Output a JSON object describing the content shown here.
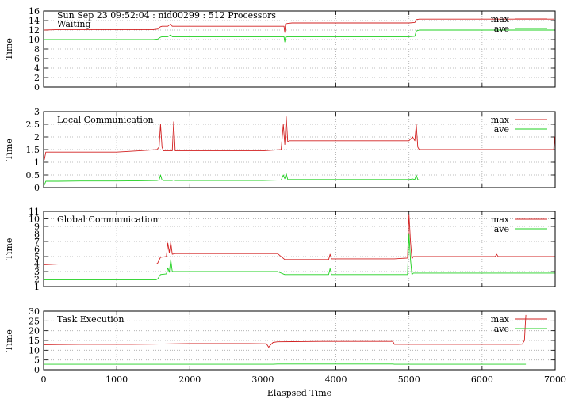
{
  "chart_data": [
    {
      "type": "line",
      "header": "Sun Sep 23 09:52:04 : nid00299 : 512 Processors",
      "title": "Waiting",
      "xlabel": "",
      "ylabel": "Time",
      "xlim": [
        0,
        7000
      ],
      "ylim": [
        0,
        16
      ],
      "xticks": [
        0,
        1000,
        2000,
        3000,
        4000,
        5000,
        6000,
        7000
      ],
      "yticks": [
        0,
        2,
        4,
        6,
        8,
        10,
        12,
        14,
        16
      ],
      "show_xtick_labels": false,
      "grid": true,
      "legend": "top-right",
      "series": [
        {
          "name": "max",
          "color": "#d22020",
          "x": [
            0,
            200,
            400,
            600,
            800,
            1000,
            1200,
            1400,
            1500,
            1560,
            1580,
            1600,
            1620,
            1700,
            1740,
            1760,
            1780,
            1900,
            2100,
            2400,
            2700,
            3000,
            3200,
            3290,
            3300,
            3310,
            3340,
            3400,
            3600,
            3800,
            4000,
            4200,
            4400,
            4600,
            4800,
            5000,
            5080,
            5100,
            5140,
            5200,
            5400,
            5600,
            5800,
            6000,
            6200,
            6400,
            6600,
            6800,
            6990
          ],
          "y": [
            12.0,
            12.1,
            12.1,
            12.1,
            12.1,
            12.1,
            12.1,
            12.1,
            12.1,
            12.2,
            12.5,
            12.7,
            12.8,
            12.8,
            13.3,
            12.8,
            12.8,
            12.8,
            12.8,
            12.8,
            12.8,
            12.8,
            12.8,
            12.8,
            11.5,
            13.3,
            13.4,
            13.5,
            13.5,
            13.5,
            13.5,
            13.5,
            13.5,
            13.5,
            13.5,
            13.5,
            13.6,
            14.2,
            14.3,
            14.3,
            14.3,
            14.3,
            14.3,
            14.3,
            14.3,
            14.3,
            14.3,
            14.3,
            14.3
          ]
        },
        {
          "name": "ave",
          "color": "#20d020",
          "x": [
            0,
            200,
            400,
            600,
            800,
            1000,
            1200,
            1400,
            1500,
            1560,
            1580,
            1600,
            1620,
            1700,
            1740,
            1760,
            1780,
            1900,
            2100,
            2400,
            2700,
            3000,
            3200,
            3290,
            3300,
            3310,
            3340,
            3400,
            3600,
            3800,
            4000,
            4200,
            4400,
            4600,
            4800,
            5000,
            5080,
            5100,
            5140,
            5200,
            5400,
            5600,
            5800,
            6000,
            6200,
            6400,
            6600,
            6800,
            6990
          ],
          "y": [
            10.0,
            10.0,
            10.0,
            10.0,
            10.0,
            10.0,
            10.0,
            10.0,
            10.0,
            10.1,
            10.3,
            10.5,
            10.6,
            10.6,
            11.0,
            10.6,
            10.6,
            10.6,
            10.6,
            10.6,
            10.6,
            10.6,
            10.6,
            10.6,
            9.5,
            10.5,
            10.6,
            10.6,
            10.6,
            10.6,
            10.6,
            10.6,
            10.6,
            10.6,
            10.6,
            10.6,
            10.7,
            11.8,
            12.0,
            12.0,
            12.0,
            12.0,
            12.0,
            12.0,
            12.0,
            12.0,
            12.0,
            12.0,
            12.0
          ]
        }
      ]
    },
    {
      "type": "line",
      "title": "Local Communication",
      "xlabel": "",
      "ylabel": "Time",
      "xlim": [
        0,
        7000
      ],
      "ylim": [
        0,
        3
      ],
      "xticks": [
        0,
        1000,
        2000,
        3000,
        4000,
        5000,
        6000,
        7000
      ],
      "yticks": [
        0,
        0.5,
        1,
        1.5,
        2,
        2.5,
        3
      ],
      "show_xtick_labels": false,
      "grid": true,
      "legend": "top-right",
      "series": [
        {
          "name": "max",
          "color": "#d22020",
          "x": [
            0,
            10,
            30,
            60,
            200,
            500,
            800,
            1000,
            1300,
            1550,
            1580,
            1600,
            1620,
            1640,
            1700,
            1760,
            1780,
            1800,
            1820,
            1900,
            2200,
            2600,
            3000,
            3250,
            3280,
            3300,
            3320,
            3340,
            3360,
            3380,
            3400,
            3600,
            4000,
            4400,
            4800,
            5000,
            5050,
            5080,
            5100,
            5120,
            5140,
            5200,
            5400,
            5800,
            6200,
            6600,
            6980,
            6990,
            7000
          ],
          "y": [
            1.4,
            1.1,
            1.4,
            1.4,
            1.4,
            1.4,
            1.4,
            1.4,
            1.45,
            1.5,
            1.6,
            2.5,
            1.6,
            1.45,
            1.45,
            1.45,
            2.6,
            1.45,
            1.45,
            1.45,
            1.45,
            1.45,
            1.45,
            1.5,
            2.5,
            1.7,
            2.8,
            1.8,
            1.85,
            1.85,
            1.85,
            1.85,
            1.85,
            1.85,
            1.85,
            1.85,
            2.0,
            1.85,
            2.5,
            1.6,
            1.5,
            1.5,
            1.5,
            1.5,
            1.5,
            1.5,
            1.5,
            2.0,
            1.5
          ]
        },
        {
          "name": "ave",
          "color": "#20d020",
          "x": [
            0,
            10,
            30,
            60,
            200,
            500,
            800,
            1000,
            1300,
            1550,
            1580,
            1600,
            1620,
            1640,
            1700,
            1760,
            1780,
            1800,
            1820,
            1900,
            2200,
            2600,
            3000,
            3250,
            3280,
            3300,
            3320,
            3340,
            3360,
            3380,
            3400,
            3600,
            4000,
            4400,
            4800,
            5000,
            5050,
            5080,
            5100,
            5120,
            5140,
            5200,
            5400,
            5800,
            6200,
            6600,
            6980,
            6990,
            7000
          ],
          "y": [
            0.25,
            0.1,
            0.25,
            0.25,
            0.25,
            0.26,
            0.26,
            0.26,
            0.27,
            0.28,
            0.3,
            0.5,
            0.3,
            0.28,
            0.28,
            0.28,
            0.3,
            0.28,
            0.28,
            0.28,
            0.28,
            0.28,
            0.28,
            0.3,
            0.5,
            0.35,
            0.55,
            0.32,
            0.32,
            0.32,
            0.32,
            0.32,
            0.32,
            0.32,
            0.32,
            0.32,
            0.34,
            0.32,
            0.5,
            0.32,
            0.3,
            0.3,
            0.3,
            0.3,
            0.3,
            0.3,
            0.3,
            0.3,
            0.3
          ]
        }
      ]
    },
    {
      "type": "line",
      "title": "Global Communication",
      "xlabel": "",
      "ylabel": "Time",
      "xlim": [
        0,
        7000
      ],
      "ylim": [
        1,
        11
      ],
      "xticks": [
        0,
        1000,
        2000,
        3000,
        4000,
        5000,
        6000,
        7000
      ],
      "yticks": [
        1,
        2,
        3,
        4,
        5,
        6,
        7,
        8,
        9,
        10,
        11
      ],
      "show_xtick_labels": false,
      "grid": true,
      "legend": "top-right",
      "series": [
        {
          "name": "max",
          "color": "#d22020",
          "x": [
            0,
            200,
            500,
            800,
            1000,
            1200,
            1400,
            1540,
            1560,
            1600,
            1680,
            1700,
            1720,
            1740,
            1760,
            1800,
            2000,
            2400,
            2800,
            3100,
            3200,
            3300,
            3400,
            3600,
            3900,
            3920,
            3940,
            4000,
            4400,
            4800,
            4980,
            5000,
            5020,
            5040,
            5060,
            5100,
            5400,
            5800,
            6180,
            6200,
            6220,
            6400,
            6800,
            6990,
            7000
          ],
          "y": [
            3.9,
            4.0,
            4.0,
            4.0,
            4.0,
            4.0,
            4.0,
            4.0,
            4.1,
            4.9,
            5.0,
            6.8,
            5.5,
            6.9,
            5.3,
            5.4,
            5.4,
            5.4,
            5.4,
            5.4,
            5.4,
            4.6,
            4.6,
            4.6,
            4.6,
            5.3,
            4.7,
            4.7,
            4.7,
            4.7,
            4.8,
            10.6,
            7.0,
            4.7,
            5.0,
            5.0,
            5.0,
            5.0,
            5.0,
            5.3,
            5.0,
            5.0,
            5.0,
            5.0,
            5.0
          ]
        },
        {
          "name": "ave",
          "color": "#20d020",
          "x": [
            0,
            200,
            500,
            800,
            1000,
            1200,
            1400,
            1540,
            1560,
            1600,
            1680,
            1700,
            1720,
            1740,
            1760,
            1800,
            2000,
            2400,
            2800,
            3100,
            3200,
            3300,
            3400,
            3600,
            3900,
            3920,
            3940,
            4000,
            4400,
            4800,
            4980,
            5000,
            5020,
            5040,
            5060,
            5100,
            5400,
            5800,
            6180,
            6200,
            6220,
            6400,
            6800,
            6990,
            7000
          ],
          "y": [
            1.9,
            1.9,
            1.9,
            1.9,
            1.9,
            1.9,
            1.9,
            1.9,
            2.0,
            2.6,
            2.7,
            3.5,
            2.9,
            4.6,
            3.0,
            3.0,
            3.0,
            3.0,
            3.0,
            3.0,
            3.0,
            2.6,
            2.6,
            2.6,
            2.6,
            3.4,
            2.6,
            2.6,
            2.6,
            2.6,
            2.6,
            8.0,
            4.6,
            2.6,
            2.8,
            2.8,
            2.8,
            2.8,
            2.8,
            2.8,
            2.8,
            2.8,
            2.8,
            2.8,
            2.8
          ]
        }
      ]
    },
    {
      "type": "line",
      "title": "Task Execution",
      "xlabel": "Elaspsed Time",
      "ylabel": "Time",
      "xlim": [
        0,
        7000
      ],
      "ylim": [
        0,
        30
      ],
      "xticks": [
        0,
        1000,
        2000,
        3000,
        4000,
        5000,
        6000,
        7000
      ],
      "yticks": [
        0,
        5,
        10,
        15,
        20,
        25,
        30
      ],
      "show_xtick_labels": true,
      "grid": true,
      "legend": "top-right",
      "series": [
        {
          "name": "max",
          "color": "#d22020",
          "x": [
            0,
            200,
            500,
            800,
            1000,
            1200,
            1500,
            1800,
            2000,
            2400,
            2800,
            3050,
            3080,
            3100,
            3140,
            3200,
            3400,
            3800,
            4200,
            4600,
            4780,
            4800,
            4830,
            5000,
            5400,
            5800,
            6200,
            6500,
            6550,
            6580,
            6590,
            6600
          ],
          "y": [
            12.8,
            12.9,
            13.0,
            13.0,
            13.0,
            13.0,
            13.1,
            13.3,
            13.4,
            13.4,
            13.4,
            13.3,
            11.5,
            12.5,
            14.0,
            14.3,
            14.4,
            14.5,
            14.5,
            14.5,
            14.5,
            13.0,
            13.0,
            13.0,
            13.0,
            13.0,
            13.0,
            13.0,
            13.1,
            15.0,
            22.0,
            28.0
          ]
        },
        {
          "name": "ave",
          "color": "#20d020",
          "x": [
            0,
            200,
            500,
            800,
            1000,
            1200,
            1500,
            1800,
            2000,
            2400,
            2800,
            3050,
            3080,
            3100,
            3140,
            3200,
            3400,
            3800,
            4200,
            4600,
            4780,
            4800,
            4830,
            5000,
            5400,
            5800,
            6200,
            6500,
            6550,
            6580,
            6590,
            6600
          ],
          "y": [
            2.8,
            2.8,
            2.8,
            2.8,
            2.8,
            2.8,
            2.8,
            2.8,
            2.8,
            2.8,
            2.8,
            2.8,
            2.8,
            2.8,
            2.8,
            2.9,
            2.9,
            2.9,
            2.9,
            2.9,
            2.9,
            2.8,
            2.8,
            2.8,
            2.8,
            2.8,
            2.8,
            2.8,
            2.8,
            2.8,
            2.8,
            2.8
          ]
        }
      ]
    }
  ]
}
